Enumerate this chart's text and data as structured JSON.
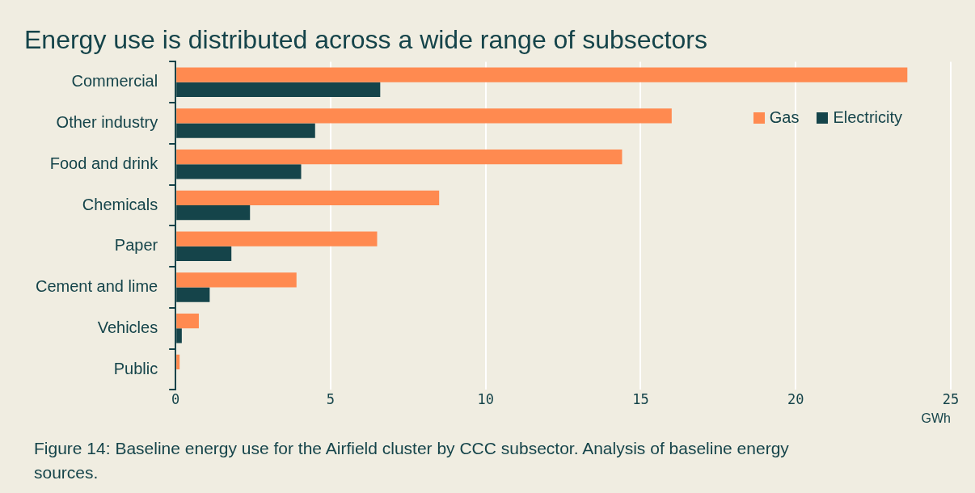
{
  "chart_data": {
    "type": "bar",
    "orientation": "horizontal",
    "title": "Energy use is distributed across a wide range of subsectors",
    "xlabel": "GWh",
    "categories": [
      "Commercial",
      "Other industry",
      "Food and drink",
      "Chemicals",
      "Paper",
      "Cement and lime",
      "Vehicles",
      "Public"
    ],
    "series": [
      {
        "name": "Gas",
        "color": "#ff8a50",
        "values": [
          23.6,
          16.0,
          14.4,
          8.5,
          6.5,
          3.9,
          0.75,
          0.13
        ]
      },
      {
        "name": "Electricity",
        "color": "#15444a",
        "values": [
          6.6,
          4.5,
          4.05,
          2.4,
          1.8,
          1.1,
          0.2,
          null
        ]
      }
    ],
    "xlim": [
      0,
      25
    ],
    "xticks": [
      0,
      5,
      10,
      15,
      20,
      25
    ],
    "grid": "x",
    "legend": "top right",
    "annotations": [
      "Figure 14: Baseline energy use for the Airfield cluster by CCC subsector. Analysis of baseline energy sources."
    ]
  }
}
